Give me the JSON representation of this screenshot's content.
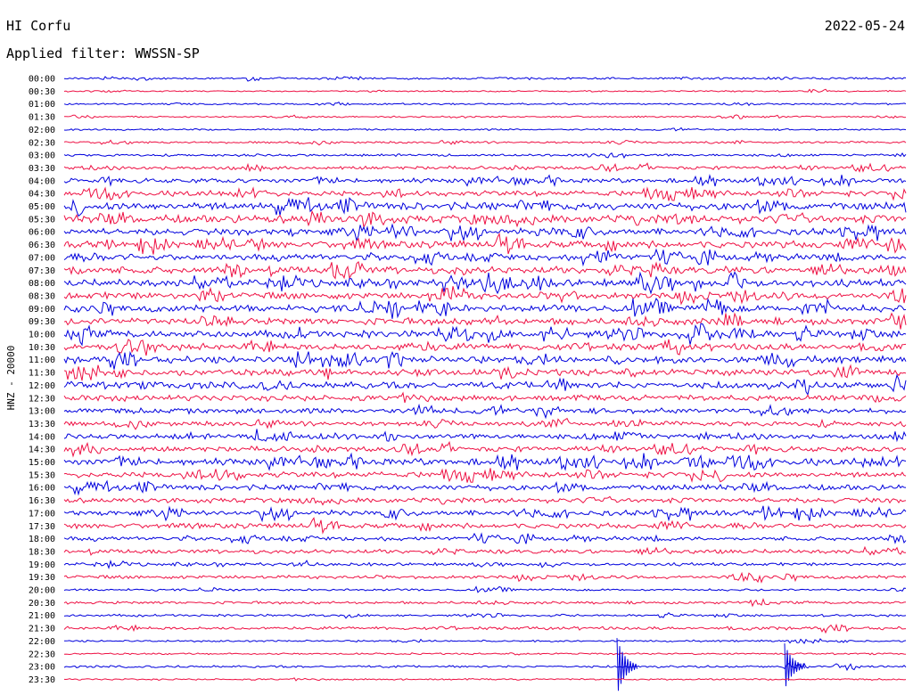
{
  "header": {
    "station": "HI Corfu",
    "date": "2022-05-24",
    "filter_label": "Applied filter: WWSSN-SP"
  },
  "chart_data": {
    "type": "line",
    "title": "HI Corfu",
    "subtitle": "Applied filter: WWSSN-SP",
    "date": "2022-05-24",
    "ylabel": "HNZ - 20000",
    "colors": [
      "#0000dd",
      "#ee1144"
    ],
    "grid": false,
    "legend": "none",
    "rows": [
      {
        "time": "00:00",
        "level": 0.12
      },
      {
        "time": "00:30",
        "level": 0.02
      },
      {
        "time": "01:00",
        "level": 0.06
      },
      {
        "time": "01:30",
        "level": 0.04
      },
      {
        "time": "02:00",
        "level": 0.06
      },
      {
        "time": "02:30",
        "level": 0.12
      },
      {
        "time": "03:00",
        "level": 0.15
      },
      {
        "time": "03:30",
        "level": 0.3
      },
      {
        "time": "04:00",
        "level": 0.45
      },
      {
        "time": "04:30",
        "level": 0.55
      },
      {
        "time": "05:00",
        "level": 0.9
      },
      {
        "time": "05:30",
        "level": 0.9
      },
      {
        "time": "06:00",
        "level": 0.7
      },
      {
        "time": "06:30",
        "level": 0.75
      },
      {
        "time": "07:00",
        "level": 0.7
      },
      {
        "time": "07:30",
        "level": 0.8
      },
      {
        "time": "08:00",
        "level": 0.8
      },
      {
        "time": "08:30",
        "level": 0.75
      },
      {
        "time": "09:00",
        "level": 0.75
      },
      {
        "time": "09:30",
        "level": 0.75
      },
      {
        "time": "10:00",
        "level": 0.8
      },
      {
        "time": "10:30",
        "level": 0.75
      },
      {
        "time": "11:00",
        "level": 0.75
      },
      {
        "time": "11:30",
        "level": 0.7
      },
      {
        "time": "12:00",
        "level": 0.8
      },
      {
        "time": "12:30",
        "level": 0.6
      },
      {
        "time": "13:00",
        "level": 0.55
      },
      {
        "time": "13:30",
        "level": 0.45
      },
      {
        "time": "14:00",
        "level": 0.5
      },
      {
        "time": "14:30",
        "level": 0.55
      },
      {
        "time": "15:00",
        "level": 0.75
      },
      {
        "time": "15:30",
        "level": 0.6
      },
      {
        "time": "16:00",
        "level": 0.6
      },
      {
        "time": "16:30",
        "level": 0.5
      },
      {
        "time": "17:00",
        "level": 0.55
      },
      {
        "time": "17:30",
        "level": 0.5
      },
      {
        "time": "18:00",
        "level": 0.4
      },
      {
        "time": "18:30",
        "level": 0.4
      },
      {
        "time": "19:00",
        "level": 0.25
      },
      {
        "time": "19:30",
        "level": 0.3
      },
      {
        "time": "20:00",
        "level": 0.12
      },
      {
        "time": "20:30",
        "level": 0.2
      },
      {
        "time": "21:00",
        "level": 0.15
      },
      {
        "time": "21:30",
        "level": 0.25
      },
      {
        "time": "22:00",
        "level": 0.08
      },
      {
        "time": "22:30",
        "level": 0.06
      },
      {
        "time": "23:00",
        "level": 0.15
      },
      {
        "time": "23:30",
        "level": 0.05
      }
    ]
  }
}
